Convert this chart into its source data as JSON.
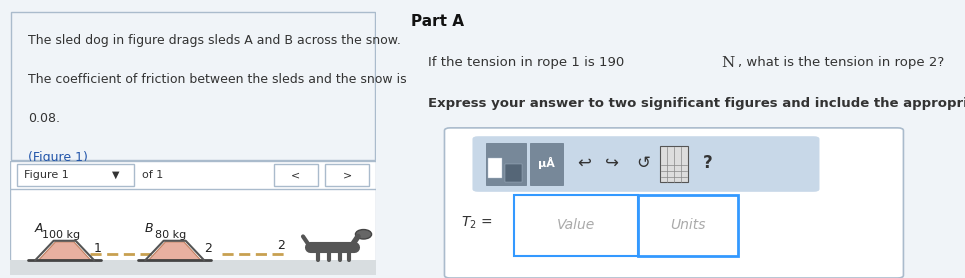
{
  "bg_color": "#f0f4f8",
  "white": "#ffffff",
  "left_panel_text": "The sled dog in figure drags sleds A and B across the snow.\nThe coefficient of friction between the sleds and the snow is\n0.08.\n(Figure 1)",
  "figure_label": "Figure 1",
  "of_label": "of 1",
  "fig_nav_arrows": [
    "<",
    ">"
  ],
  "sled_A_label": "A",
  "sled_B_label": "B",
  "sled_A_mass": "100 kg",
  "sled_B_mass": "80 kg",
  "rope1_label": "1",
  "rope2_label": "2",
  "part_label": "Part A",
  "question_text": "If the tension in rope 1 is 190 ",
  "tension_N": "N",
  "question_text2": ", what is the tension in rope 2?",
  "bold_text": "Express your answer to two significant figures and include the appropriate units.",
  "toolbar_bg": "#c8d8e8",
  "answer_label": "T₂ =",
  "value_placeholder": "Value",
  "units_placeholder": "Units",
  "link_color": "#2255aa",
  "text_color": "#333333",
  "border_color": "#aabbcc",
  "input_border": "#3399ff",
  "snow_color": "#d8dde0",
  "sled_color": "#e8b0a0",
  "rope_color": "#c8a050"
}
